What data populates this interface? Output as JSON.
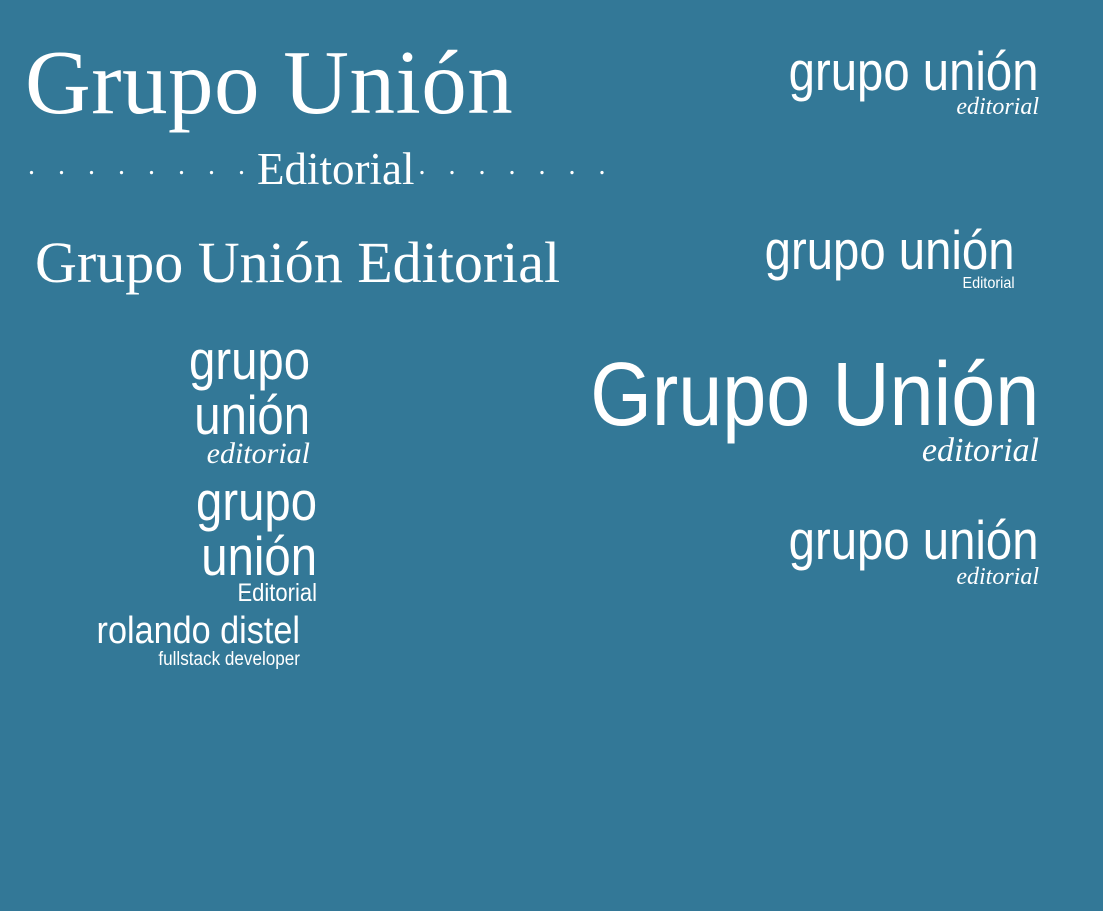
{
  "background_color": "#337897",
  "text_color": "#ffffff",
  "logos": [
    {
      "main": "Grupo Unión",
      "dots_left": ". . . . . . . .",
      "tag": "Editorial",
      "dots_right": ". . . . . . ."
    },
    {
      "main": "Grupo Unión Editorial"
    },
    {
      "main": "grupo unión",
      "tag": "editorial"
    },
    {
      "main": "grupo unión",
      "tag": "Editorial"
    },
    {
      "main": "grupo unión",
      "tag": "editorial"
    },
    {
      "main": "Grupo Unión",
      "tag": "editorial"
    },
    {
      "main": "grupo unión",
      "tag": "Editorial"
    },
    {
      "main": "grupo unión",
      "tag": "editorial"
    },
    {
      "main": "rolando distel",
      "tag": "fullstack developer"
    }
  ]
}
